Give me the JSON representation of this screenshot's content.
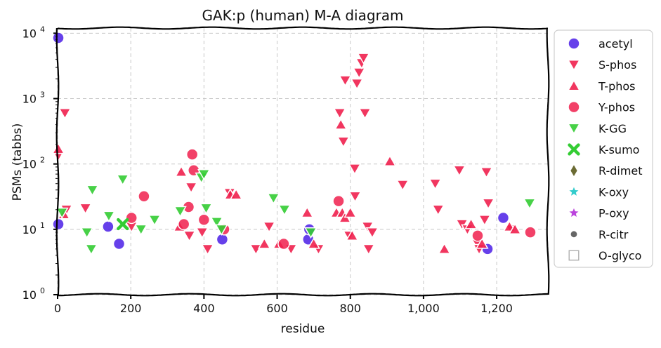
{
  "chart_data": {
    "type": "scatter",
    "title": "GAK:p (human) M-A diagram",
    "xlabel": "residue",
    "ylabel": "PSMs (tabbs)",
    "xlim": [
      0,
      1340
    ],
    "ylim": [
      1,
      12000
    ],
    "yscale": "log",
    "grid": true,
    "legend_position": "right-outside",
    "x_ticks": [
      {
        "value": 0,
        "label": "0"
      },
      {
        "value": 200,
        "label": "200"
      },
      {
        "value": 400,
        "label": "400"
      },
      {
        "value": 600,
        "label": "600"
      },
      {
        "value": 800,
        "label": "800"
      },
      {
        "value": 1000,
        "label": "1,000"
      },
      {
        "value": 1200,
        "label": "1,200"
      }
    ],
    "y_ticks": [
      {
        "value": 1,
        "base": "10",
        "exp": "0"
      },
      {
        "value": 10,
        "base": "10",
        "exp": "1"
      },
      {
        "value": 100,
        "base": "10",
        "exp": "2"
      },
      {
        "value": 1000,
        "base": "10",
        "exp": "3"
      },
      {
        "value": 10000,
        "base": "10",
        "exp": "4"
      }
    ],
    "series": [
      {
        "name": "acetyl",
        "marker": "circle",
        "color": "#4b1fe6",
        "points": [
          [
            2,
            8500
          ],
          [
            2,
            12
          ],
          [
            138,
            11
          ],
          [
            168,
            6
          ],
          [
            450,
            7
          ],
          [
            685,
            7
          ],
          [
            688,
            10
          ],
          [
            1175,
            5
          ],
          [
            1218,
            15
          ]
        ]
      },
      {
        "name": "S-phos",
        "marker": "triangle-down",
        "color": "#f0204e",
        "points": [
          [
            2,
            135
          ],
          [
            20,
            600
          ],
          [
            24,
            20
          ],
          [
            76,
            21
          ],
          [
            202,
            11
          ],
          [
            360,
            8
          ],
          [
            365,
            44
          ],
          [
            410,
            5
          ],
          [
            395,
            9
          ],
          [
            470,
            36
          ],
          [
            542,
            5
          ],
          [
            578,
            11
          ],
          [
            638,
            5
          ],
          [
            713,
            5
          ],
          [
            771,
            600
          ],
          [
            781,
            220
          ],
          [
            786,
            1900
          ],
          [
            797,
            8
          ],
          [
            812,
            85
          ],
          [
            813,
            32
          ],
          [
            818,
            1700
          ],
          [
            824,
            2500
          ],
          [
            831,
            3500
          ],
          [
            836,
            4200
          ],
          [
            840,
            600
          ],
          [
            847,
            11
          ],
          [
            850,
            5
          ],
          [
            860,
            9
          ],
          [
            943,
            48
          ],
          [
            1032,
            50
          ],
          [
            1040,
            20
          ],
          [
            1098,
            80
          ],
          [
            1105,
            12
          ],
          [
            1120,
            10
          ],
          [
            1148,
            6
          ],
          [
            1152,
            5
          ],
          [
            1167,
            14
          ],
          [
            1172,
            75
          ],
          [
            1177,
            25
          ],
          [
            1240,
            10
          ]
        ]
      },
      {
        "name": "T-phos",
        "marker": "triangle-up",
        "color": "#f0204e",
        "points": [
          [
            2,
            170
          ],
          [
            17,
            17
          ],
          [
            333,
            11
          ],
          [
            338,
            76
          ],
          [
            472,
            34
          ],
          [
            488,
            34
          ],
          [
            565,
            6
          ],
          [
            605,
            6
          ],
          [
            682,
            18
          ],
          [
            700,
            6
          ],
          [
            762,
            18
          ],
          [
            774,
            400
          ],
          [
            778,
            18
          ],
          [
            785,
            15
          ],
          [
            800,
            18
          ],
          [
            805,
            8
          ],
          [
            908,
            110
          ],
          [
            1057,
            5
          ],
          [
            1130,
            12
          ],
          [
            1160,
            6
          ],
          [
            1235,
            11
          ],
          [
            1250,
            10
          ]
        ]
      },
      {
        "name": "Y-phos",
        "marker": "circle",
        "color": "#f0204e",
        "points": [
          [
            202,
            15
          ],
          [
            236,
            32
          ],
          [
            345,
            12
          ],
          [
            358,
            22
          ],
          [
            368,
            140
          ],
          [
            372,
            80
          ],
          [
            400,
            14
          ],
          [
            455,
            10
          ],
          [
            618,
            6
          ],
          [
            768,
            27
          ],
          [
            1148,
            8
          ],
          [
            1292,
            9
          ]
        ]
      },
      {
        "name": "K-GG",
        "marker": "triangle-down",
        "color": "#33cc33",
        "points": [
          [
            12,
            18
          ],
          [
            80,
            9
          ],
          [
            92,
            5
          ],
          [
            95,
            40
          ],
          [
            140,
            16
          ],
          [
            178,
            58
          ],
          [
            228,
            10
          ],
          [
            265,
            14
          ],
          [
            335,
            19
          ],
          [
            393,
            62
          ],
          [
            400,
            70
          ],
          [
            406,
            21
          ],
          [
            435,
            13
          ],
          [
            448,
            10
          ],
          [
            590,
            30
          ],
          [
            620,
            20
          ],
          [
            692,
            9
          ],
          [
            1290,
            25
          ]
        ]
      },
      {
        "name": "K-sumo",
        "marker": "x",
        "color": "#33cc33",
        "points": [
          [
            178,
            12
          ]
        ]
      },
      {
        "name": "R-dimet",
        "marker": "diamond",
        "color": "#6b6b33",
        "points": []
      },
      {
        "name": "K-oxy",
        "marker": "star",
        "color": "#33cccc",
        "points": []
      },
      {
        "name": "P-oxy",
        "marker": "star",
        "color": "#bb44dd",
        "points": []
      },
      {
        "name": "R-citr",
        "marker": "dot",
        "color": "#666666",
        "points": []
      },
      {
        "name": "O-glyco",
        "marker": "square-open",
        "color": "#aaaaaa",
        "points": []
      }
    ]
  }
}
